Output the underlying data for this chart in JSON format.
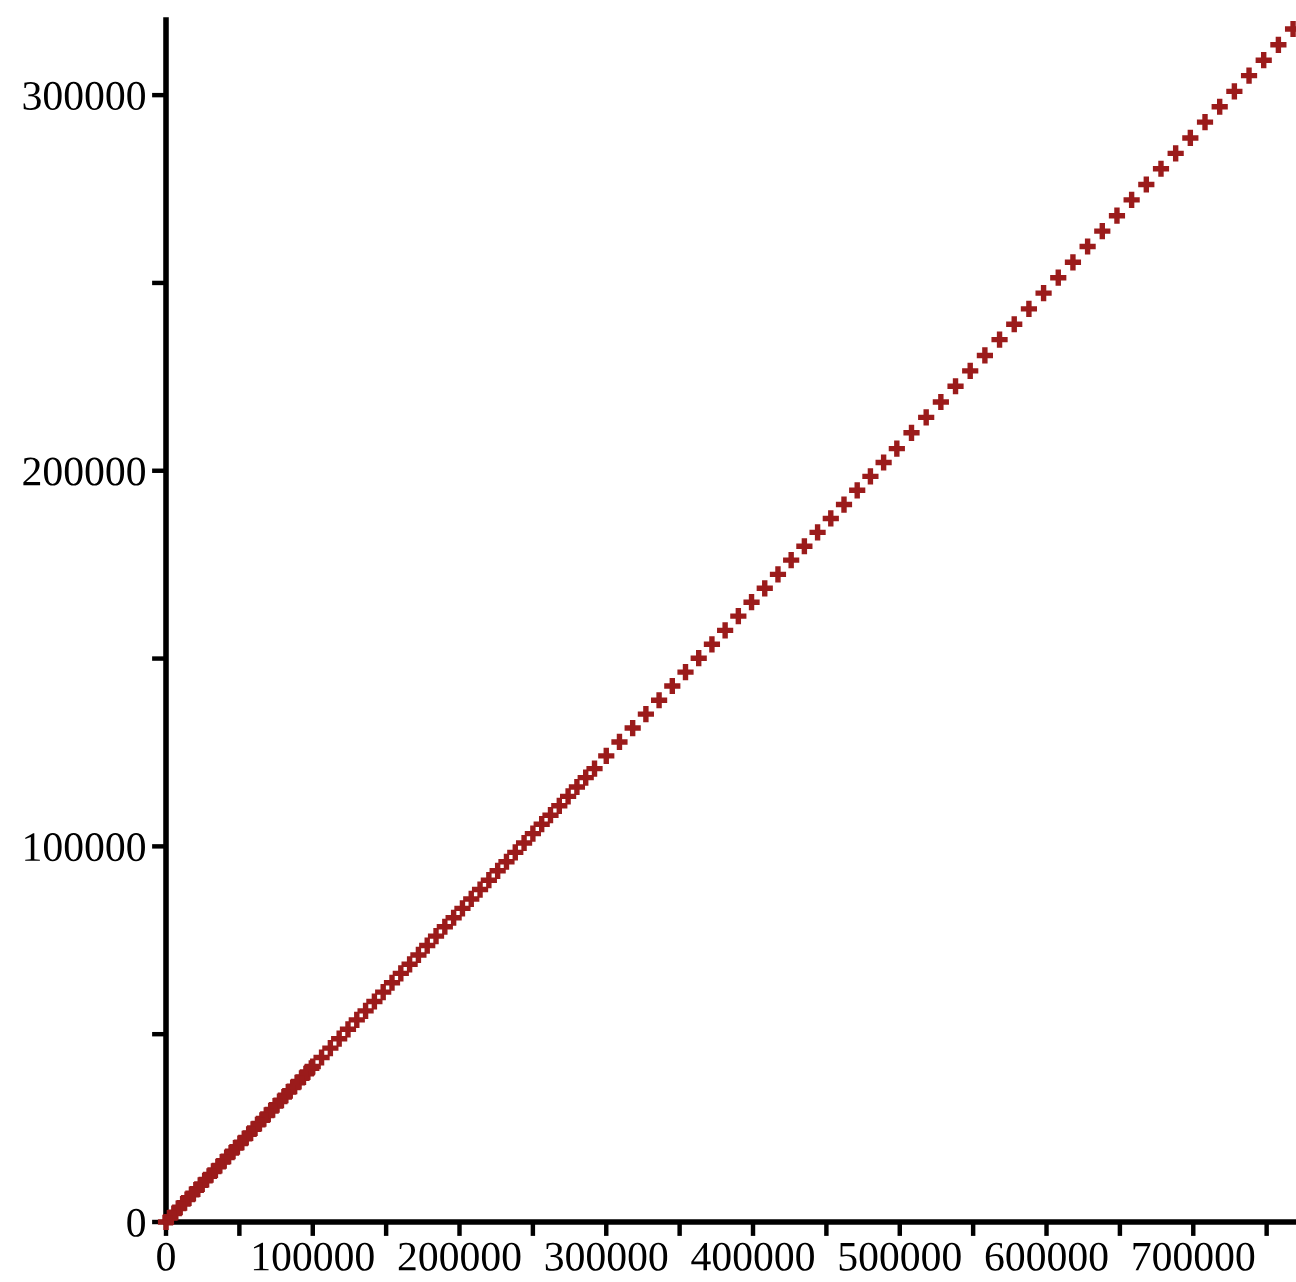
{
  "chart_data": {
    "type": "scatter",
    "marker": "cross",
    "series": [
      {
        "color": "#9b1b1b",
        "x": [
          0,
          3000,
          6000,
          9000,
          12000,
          15000,
          18000,
          21000,
          24000,
          27000,
          30000,
          33000,
          36000,
          39000,
          42000,
          45000,
          48000,
          51000,
          54000,
          57000,
          60000,
          63000,
          66000,
          69000,
          72000,
          75000,
          78000,
          81000,
          84000,
          87000,
          90000,
          93000,
          96000,
          99000,
          100000,
          106000,
          112000,
          118000,
          124000,
          130000,
          136000,
          142000,
          148000,
          154000,
          160000,
          166000,
          172000,
          178000,
          184000,
          190000,
          196000,
          202000,
          208000,
          214000,
          220000,
          226000,
          232000,
          238000,
          244000,
          250000,
          256000,
          262000,
          268000,
          274000,
          280000,
          286000,
          292000,
          300000,
          309000,
          318000,
          327000,
          336000,
          345000,
          354000,
          363000,
          372000,
          381000,
          390000,
          399000,
          408000,
          417000,
          426000,
          435000,
          444000,
          453000,
          462000,
          471000,
          480000,
          489000,
          498000,
          508000,
          518000,
          528000,
          538000,
          548000,
          558000,
          568000,
          578000,
          588000,
          598000,
          608000,
          618000,
          628000,
          638000,
          648000,
          658000,
          668000,
          678000,
          688000,
          698000,
          708000,
          718000,
          728000,
          738000,
          748000,
          758000,
          768000
        ],
        "values": [
          0,
          1200,
          2500,
          3700,
          5000,
          6200,
          7400,
          8700,
          9900,
          11200,
          12400,
          13600,
          14900,
          16100,
          17400,
          18600,
          19800,
          21100,
          22300,
          23600,
          24800,
          26100,
          27300,
          28500,
          29800,
          31000,
          32300,
          33500,
          34700,
          36000,
          37200,
          38500,
          39700,
          40900,
          41400,
          43800,
          46300,
          48800,
          51300,
          53800,
          56200,
          58700,
          61200,
          63700,
          66200,
          68600,
          71100,
          73600,
          76100,
          78600,
          81000,
          83500,
          86000,
          88500,
          91000,
          93500,
          95900,
          98400,
          100900,
          103400,
          105900,
          108300,
          110800,
          113300,
          115800,
          118300,
          120700,
          124100,
          127800,
          131500,
          135200,
          138900,
          142700,
          146400,
          150100,
          153800,
          157500,
          161300,
          165000,
          168700,
          172400,
          176200,
          179900,
          183600,
          187300,
          191000,
          194800,
          198500,
          202200,
          205900,
          210100,
          214200,
          218300,
          222500,
          226600,
          230700,
          234900,
          239000,
          243100,
          247300,
          251400,
          255500,
          259700,
          263800,
          267900,
          272100,
          276200,
          280400,
          284500,
          288600,
          292800,
          296900,
          301000,
          305200,
          309300,
          313400,
          317600
        ]
      }
    ],
    "xlim": [
      0,
      770000
    ],
    "ylim": [
      0,
      320000
    ],
    "xticks": [
      0,
      {
        "value": 50000,
        "label": null
      },
      100000,
      {
        "value": 150000,
        "label": null
      },
      200000,
      {
        "value": 250000,
        "label": null
      },
      300000,
      {
        "value": 350000,
        "label": null
      },
      400000,
      {
        "value": 450000,
        "label": null
      },
      500000,
      {
        "value": 550000,
        "label": null
      },
      600000,
      {
        "value": 650000,
        "label": null
      },
      700000,
      {
        "value": 750000,
        "label": null
      }
    ],
    "yticks": [
      0,
      {
        "value": 50000,
        "label": null
      },
      100000,
      {
        "value": 150000,
        "label": null
      },
      200000,
      {
        "value": 250000,
        "label": null
      },
      300000
    ]
  }
}
